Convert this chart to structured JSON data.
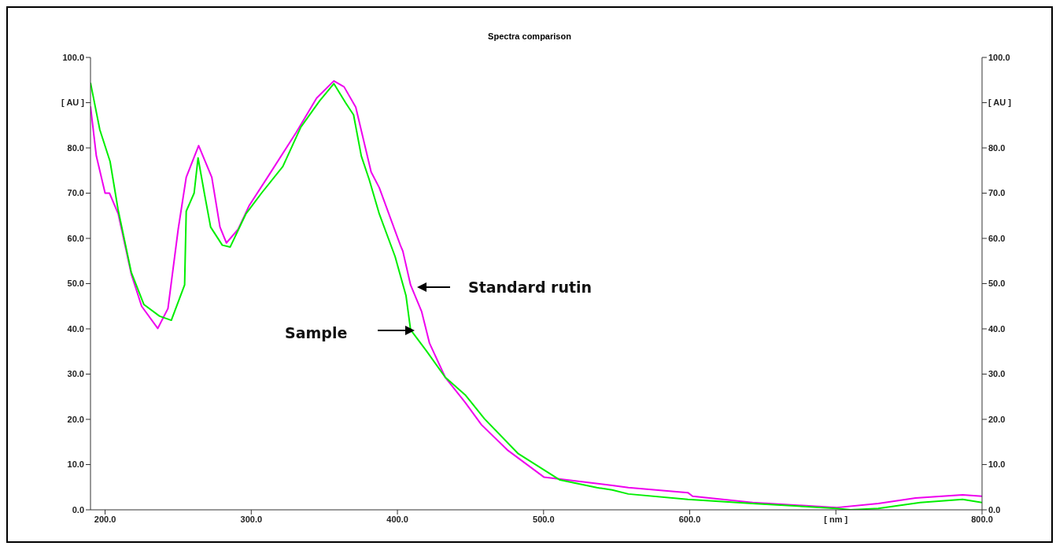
{
  "chart_data": {
    "type": "line",
    "title": "Spectra comparison",
    "xlim": [
      190,
      800
    ],
    "xticks": [
      {
        "value": 200,
        "label": "200.0"
      },
      {
        "value": 300,
        "label": "300.0"
      },
      {
        "value": 400,
        "label": "400.0"
      },
      {
        "value": 500,
        "label": "500.0"
      },
      {
        "value": 600,
        "label": "600.0"
      },
      {
        "value": 700,
        "label": "[ nm ]"
      },
      {
        "value": 800,
        "label": "800.0"
      }
    ],
    "ylim": [
      0,
      100
    ],
    "yticks": [
      {
        "value": 0,
        "label": "0.0"
      },
      {
        "value": 10,
        "label": "10.0"
      },
      {
        "value": 20,
        "label": "20.0"
      },
      {
        "value": 30,
        "label": "30.0"
      },
      {
        "value": 40,
        "label": "40.0"
      },
      {
        "value": 50,
        "label": "50.0"
      },
      {
        "value": 60,
        "label": "60.0"
      },
      {
        "value": 70,
        "label": "70.0"
      },
      {
        "value": 80,
        "label": "80.0"
      },
      {
        "value": 90,
        "label": "[ AU ]"
      },
      {
        "value": 100,
        "label": "100.0"
      }
    ],
    "y2lim": [
      0,
      100
    ],
    "y2ticks": [
      {
        "value": 0,
        "label": "0.0"
      },
      {
        "value": 10,
        "label": "10.0"
      },
      {
        "value": 20,
        "label": "20.0"
      },
      {
        "value": 30,
        "label": "30.0"
      },
      {
        "value": 40,
        "label": "40.0"
      },
      {
        "value": 50,
        "label": "50.0"
      },
      {
        "value": 60,
        "label": "60.0"
      },
      {
        "value": 70,
        "label": "70.0"
      },
      {
        "value": 80,
        "label": "80.0"
      },
      {
        "value": 90,
        "label": "[ AU ]"
      },
      {
        "value": 100,
        "label": "100.0"
      }
    ],
    "annotations": [
      "Standard rutin",
      "Sample"
    ],
    "series": [
      {
        "color": "#ee00ee",
        "x": [
          190,
          194,
          200,
          203,
          209,
          218,
          225,
          236,
          243,
          250,
          255.5,
          264,
          273,
          278.6,
          283,
          291,
          298.5,
          312.5,
          330.7,
          344.7,
          356.5,
          363.5,
          371.5,
          382,
          387.6,
          402,
          403.7,
          409,
          416.6,
          422,
          432.7,
          446.7,
          457.5,
          475.7,
          500.4,
          529.4,
          547,
          558,
          598.7,
          602,
          643,
          700.7,
          729,
          754.5,
          786.7,
          800
        ],
        "values": [
          89.2,
          78.2,
          70,
          70,
          65.4,
          52,
          45,
          40.1,
          44.5,
          62,
          73.5,
          80.5,
          73.5,
          62.5,
          59,
          62,
          67.2,
          74.2,
          83.4,
          91,
          94.8,
          93.5,
          89,
          74.7,
          71.2,
          58.5,
          57.2,
          49.7,
          43.8,
          36.8,
          29.3,
          23.6,
          18.8,
          13.1,
          7.2,
          6.1,
          5.4,
          4.9,
          3.8,
          3,
          1.6,
          0.5,
          1.4,
          2.6,
          3.3,
          3
        ]
      },
      {
        "color": "#00ee00",
        "x": [
          190,
          196.4,
          203.4,
          208.8,
          217.9,
          226.5,
          237.3,
          245.3,
          254.4,
          255.5,
          260.9,
          263.6,
          267.9,
          272.2,
          280.2,
          285.6,
          296.3,
          307,
          321.6,
          333.9,
          346.8,
          356.5,
          364.5,
          370,
          375.3,
          380.7,
          387.6,
          398.4,
          405.9,
          409,
          419.9,
          432.7,
          446.7,
          459.6,
          482.7,
          511.2,
          536.4,
          547,
          558,
          598.7,
          643,
          700.7,
          710,
          729,
          757.7,
          786.7,
          800
        ],
        "values": [
          94.4,
          84,
          77,
          66.5,
          52.5,
          45.4,
          42.8,
          41.9,
          49.7,
          66,
          70,
          77.8,
          70,
          62.5,
          58.5,
          58.1,
          65.4,
          70,
          75.9,
          84.6,
          90.4,
          94.2,
          90,
          87.3,
          78.2,
          73,
          65.4,
          56,
          47.3,
          39.8,
          35.1,
          29.3,
          25.3,
          20.1,
          12.4,
          6.6,
          4.9,
          4.4,
          3.5,
          2.3,
          1.4,
          0.3,
          0,
          0.3,
          1.6,
          2.3,
          1.6
        ]
      }
    ]
  }
}
